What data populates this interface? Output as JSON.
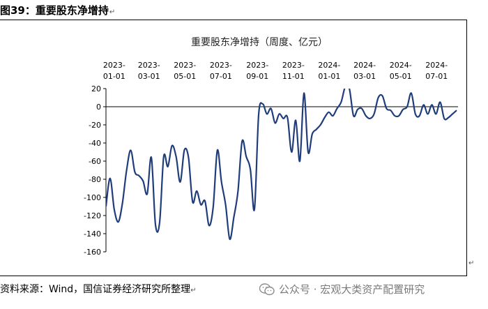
{
  "figure_label": "图39：重要股东净增持",
  "return_mark": "↵",
  "source": "资料来源：Wind，国信证券经济研究所整理",
  "watermark": "公众号 · 宏观大类资产配置研究",
  "colors": {
    "line": "#1f3d7a",
    "axis": "#000000",
    "text": "#000000"
  },
  "chart_data": {
    "type": "line",
    "title": "重要股东净增持（周度、亿元）",
    "xlabel": "",
    "ylabel": "",
    "ylim": [
      -160,
      20
    ],
    "yticks": [
      20,
      0,
      -20,
      -40,
      -60,
      -80,
      -100,
      -120,
      -140,
      -160
    ],
    "x_tick_labels": [
      {
        "date": "2023-01-01",
        "line1": "2023-",
        "line2": "01-01"
      },
      {
        "date": "2023-03-01",
        "line1": "2023-",
        "line2": "03-01"
      },
      {
        "date": "2023-05-01",
        "line1": "2023-",
        "line2": "05-01"
      },
      {
        "date": "2023-07-01",
        "line1": "2023-",
        "line2": "07-01"
      },
      {
        "date": "2023-09-01",
        "line1": "2023-",
        "line2": "09-01"
      },
      {
        "date": "2023-11-01",
        "line1": "2023-",
        "line2": "11-01"
      },
      {
        "date": "2024-01-01",
        "line1": "2024-",
        "line2": "01-01"
      },
      {
        "date": "2024-03-01",
        "line1": "2024-",
        "line2": "03-01"
      },
      {
        "date": "2024-05-01",
        "line1": "2024-",
        "line2": "05-01"
      },
      {
        "date": "2024-07-01",
        "line1": "2024-",
        "line2": "07-01"
      }
    ],
    "grid": false,
    "x_axis_position": "top (labels above plot)",
    "series": [
      {
        "name": "重要股东净增持",
        "dates": [
          "2022-12-18",
          "2022-12-25",
          "2023-01-01",
          "2023-01-08",
          "2023-01-15",
          "2023-01-22",
          "2023-01-29",
          "2023-02-05",
          "2023-02-12",
          "2023-02-19",
          "2023-02-26",
          "2023-03-05",
          "2023-03-12",
          "2023-03-19",
          "2023-03-26",
          "2023-04-02",
          "2023-04-09",
          "2023-04-16",
          "2023-04-23",
          "2023-04-30",
          "2023-05-07",
          "2023-05-14",
          "2023-05-21",
          "2023-05-28",
          "2023-06-04",
          "2023-06-11",
          "2023-06-18",
          "2023-06-25",
          "2023-07-02",
          "2023-07-09",
          "2023-07-16",
          "2023-07-23",
          "2023-07-30",
          "2023-08-06",
          "2023-08-13",
          "2023-08-20",
          "2023-08-27",
          "2023-09-03",
          "2023-09-10",
          "2023-09-17",
          "2023-09-24",
          "2023-10-01",
          "2023-10-08",
          "2023-10-15",
          "2023-10-22",
          "2023-10-29",
          "2023-11-05",
          "2023-11-12",
          "2023-11-19",
          "2023-11-26",
          "2023-12-03",
          "2023-12-10",
          "2023-12-17",
          "2023-12-24",
          "2023-12-31",
          "2024-01-07",
          "2024-01-14",
          "2024-01-21",
          "2024-01-28",
          "2024-02-04",
          "2024-02-11",
          "2024-02-18",
          "2024-02-25",
          "2024-03-03",
          "2024-03-10",
          "2024-03-17",
          "2024-03-24",
          "2024-03-31",
          "2024-04-07",
          "2024-04-14",
          "2024-04-21",
          "2024-04-28",
          "2024-05-05",
          "2024-05-12",
          "2024-05-19",
          "2024-05-26",
          "2024-06-02",
          "2024-06-09",
          "2024-06-16",
          "2024-06-23",
          "2024-06-30",
          "2024-07-07",
          "2024-07-14",
          "2024-07-21",
          "2024-07-28",
          "2024-08-04"
        ],
        "values": [
          -110,
          -79,
          -113,
          -127,
          -106,
          -70,
          -48,
          -72,
          -76,
          -82,
          -96,
          -56,
          -130,
          -128,
          -55,
          -66,
          -43,
          -55,
          -83,
          -48,
          -56,
          -105,
          -93,
          -108,
          -104,
          -131,
          -110,
          -48,
          -83,
          -108,
          -146,
          -122,
          -93,
          -38,
          -55,
          -69,
          -113,
          -9,
          3,
          -8,
          -2,
          -18,
          -8,
          -13,
          -12,
          -50,
          -15,
          -60,
          15,
          -50,
          -30,
          -25,
          -20,
          -12,
          -6,
          -10,
          -2,
          5,
          22,
          20,
          -10,
          -3,
          -2,
          -10,
          -13,
          -8,
          10,
          12,
          -2,
          -4,
          -10,
          -10,
          -3,
          0,
          15,
          -8,
          -10,
          2,
          -8,
          2,
          -8,
          5,
          -13,
          -12,
          -8,
          -4
        ]
      }
    ]
  }
}
